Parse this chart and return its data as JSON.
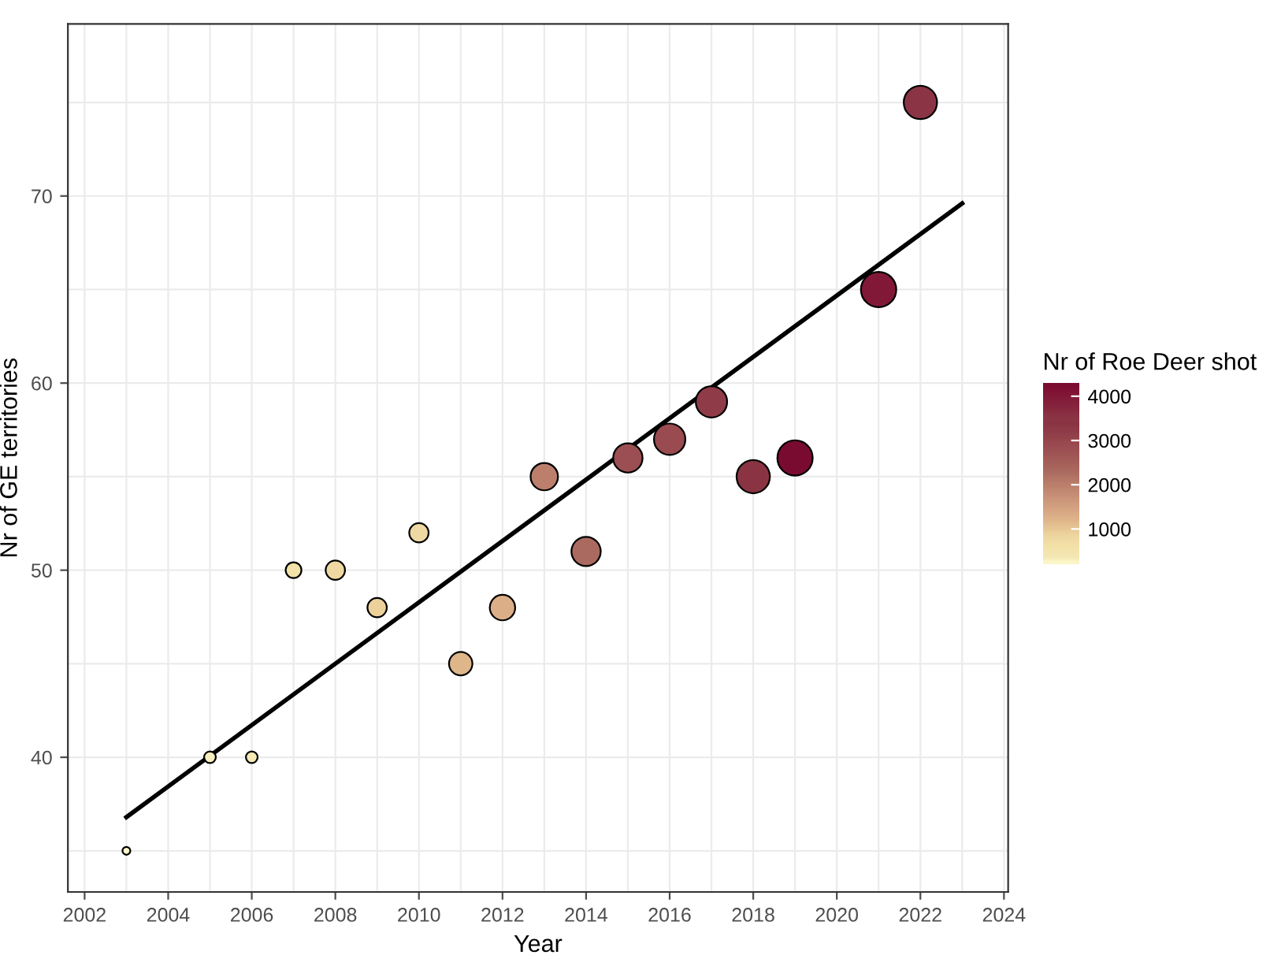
{
  "chart_data": {
    "type": "bubble",
    "xlabel": "Year",
    "ylabel": "Nr of GE territories",
    "clabel": "Nr of Roe Deer shot",
    "x": [
      2003,
      2005,
      2006,
      2007,
      2008,
      2009,
      2010,
      2011,
      2012,
      2013,
      2014,
      2015,
      2016,
      2017,
      2018,
      2019,
      2021,
      2022
    ],
    "values": [
      35,
      40,
      40,
      50,
      50,
      48,
      52,
      45,
      48,
      55,
      51,
      56,
      57,
      59,
      55,
      56,
      65,
      75
    ],
    "sizes": [
      0.05,
      0.11,
      0.11,
      0.2,
      0.3,
      0.3,
      0.3,
      0.44,
      0.52,
      0.6,
      0.69,
      0.69,
      0.79,
      0.79,
      0.89,
      1,
      1,
      0.89
    ],
    "cvalues": [
      250,
      300,
      350,
      600,
      800,
      900,
      800,
      1200,
      1300,
      2000,
      2300,
      2800,
      2900,
      3200,
      3400,
      4300,
      4000,
      3500
    ],
    "colors": [
      "#fbf5c8",
      "#f8efbd",
      "#f5e8b4",
      "#f3e2a8",
      "#efd9a2",
      "#ecd09a",
      "#efd7a1",
      "#dfb58a",
      "#dcae88",
      "#bb7f6c",
      "#ab6a60",
      "#9c4f52",
      "#9a4b50",
      "#8f3c48",
      "#8a3443",
      "#7a0b30",
      "#821838",
      "#8b3545"
    ],
    "clim": [
      200,
      4300
    ],
    "cticks": [
      1000,
      2000,
      3000,
      4000
    ],
    "series": [
      {
        "type": "line",
        "color": "#000000",
        "x": [
          2003,
          2023
        ],
        "values": [
          36.8,
          69.6
        ]
      }
    ],
    "xlim": [
      2001.6,
      2024.1
    ],
    "xticks": [
      2002,
      2004,
      2006,
      2008,
      2010,
      2012,
      2014,
      2016,
      2018,
      2020,
      2022,
      2024
    ],
    "ylim": [
      32.8,
      79.2
    ],
    "yticks": [
      40,
      50,
      60,
      70
    ],
    "grid": true
  }
}
